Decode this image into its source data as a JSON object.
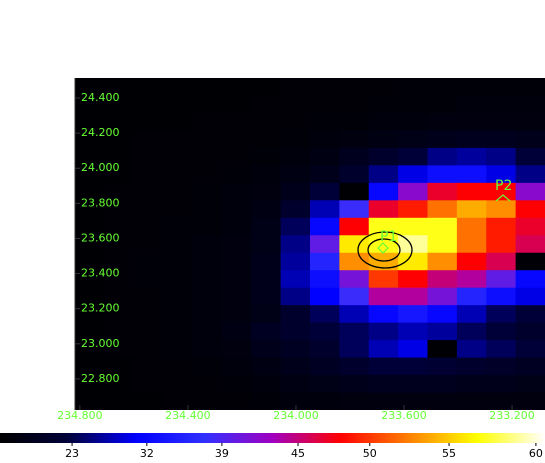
{
  "chart_data": {
    "type": "heatmap",
    "xlim": [
      234.818,
      233.078
    ],
    "ylim": [
      22.623,
      24.514
    ],
    "xticks": [
      {
        "value": 234.8,
        "label": "234.800"
      },
      {
        "value": 234.4,
        "label": "234.400"
      },
      {
        "value": 234.0,
        "label": "234.000"
      },
      {
        "value": 233.6,
        "label": "233.600"
      },
      {
        "value": 233.2,
        "label": "233.200"
      }
    ],
    "yticks": [
      {
        "value": 24.4,
        "label": "24.400"
      },
      {
        "value": 24.2,
        "label": "24.200"
      },
      {
        "value": 24.0,
        "label": "24.000"
      },
      {
        "value": 23.8,
        "label": "23.800"
      },
      {
        "value": 23.6,
        "label": "23.600"
      },
      {
        "value": 23.4,
        "label": "23.400"
      },
      {
        "value": 23.2,
        "label": "23.200"
      },
      {
        "value": 23.0,
        "label": "23.000"
      },
      {
        "value": 22.8,
        "label": "22.800"
      }
    ],
    "z": [
      [
        9,
        9,
        9,
        9,
        9,
        9,
        9,
        10,
        10,
        10,
        10,
        11,
        11,
        11,
        11,
        11
      ],
      [
        9,
        9,
        9,
        9,
        9,
        9,
        10,
        10,
        10,
        10,
        11,
        11,
        11,
        12,
        12,
        12
      ],
      [
        9,
        9,
        9,
        9,
        10,
        10,
        10,
        10,
        11,
        11,
        12,
        12,
        13,
        13,
        13,
        13
      ],
      [
        9,
        9,
        10,
        10,
        10,
        10,
        10,
        11,
        12,
        13,
        14,
        15,
        16,
        17,
        17,
        16
      ],
      [
        9,
        9,
        10,
        10,
        10,
        10,
        11,
        12,
        14,
        17,
        20,
        22,
        26,
        27,
        26,
        22
      ],
      [
        9,
        9,
        10,
        10,
        10,
        11,
        12,
        14,
        16,
        20,
        26,
        30,
        33,
        33,
        30,
        26
      ],
      [
        9,
        10,
        10,
        10,
        11,
        12,
        13,
        16,
        22,
        9,
        32,
        42,
        47,
        48,
        48,
        42
      ],
      [
        9,
        10,
        10,
        10,
        11,
        12,
        14,
        20,
        28,
        38,
        47,
        49,
        52,
        54,
        53,
        48
      ],
      [
        9,
        10,
        10,
        11,
        11,
        12,
        15,
        24,
        32,
        48,
        57,
        57,
        57,
        52,
        49,
        47
      ],
      [
        9,
        10,
        10,
        11,
        12,
        13,
        15,
        26,
        40,
        56,
        57,
        59,
        57,
        52,
        49,
        46
      ],
      [
        9,
        10,
        11,
        11,
        12,
        13,
        16,
        27,
        36,
        53,
        54,
        56,
        53,
        48,
        46,
        10
      ],
      [
        9,
        10,
        11,
        11,
        12,
        13,
        16,
        28,
        33,
        41,
        50,
        48,
        45,
        44,
        40,
        32
      ],
      [
        9,
        10,
        10,
        11,
        12,
        13,
        16,
        26,
        31,
        38,
        44,
        44,
        41,
        36,
        33,
        30
      ],
      [
        9,
        10,
        10,
        11,
        12,
        13,
        15,
        20,
        24,
        28,
        32,
        34,
        32,
        28,
        24,
        22
      ],
      [
        9,
        10,
        10,
        11,
        12,
        14,
        18,
        20,
        22,
        24,
        26,
        28,
        27,
        24,
        22,
        20
      ],
      [
        9,
        10,
        10,
        11,
        12,
        13,
        16,
        18,
        20,
        24,
        28,
        30,
        9,
        26,
        24,
        22
      ],
      [
        9,
        9,
        10,
        10,
        11,
        12,
        14,
        16,
        18,
        20,
        22,
        22,
        21,
        20,
        19,
        18
      ],
      [
        9,
        9,
        10,
        10,
        10,
        11,
        12,
        14,
        15,
        16,
        17,
        17,
        17,
        16,
        16,
        15
      ],
      [
        9,
        9,
        9,
        10,
        10,
        10,
        11,
        12,
        12,
        13,
        13,
        13,
        13,
        13,
        13,
        13
      ]
    ],
    "clim": [
      7.2,
      60.5
    ],
    "color_scale": "squared",
    "colormap": [
      "#000000",
      "#00003a",
      "#0000ff",
      "#3030ff",
      "#a000c0",
      "#ff0000",
      "#ff8000",
      "#ffff00",
      "#ffffff"
    ],
    "colorbar_ticks": [
      23,
      32,
      39,
      45,
      50,
      55,
      60
    ],
    "annotations": [
      "P1",
      "P2"
    ]
  }
}
